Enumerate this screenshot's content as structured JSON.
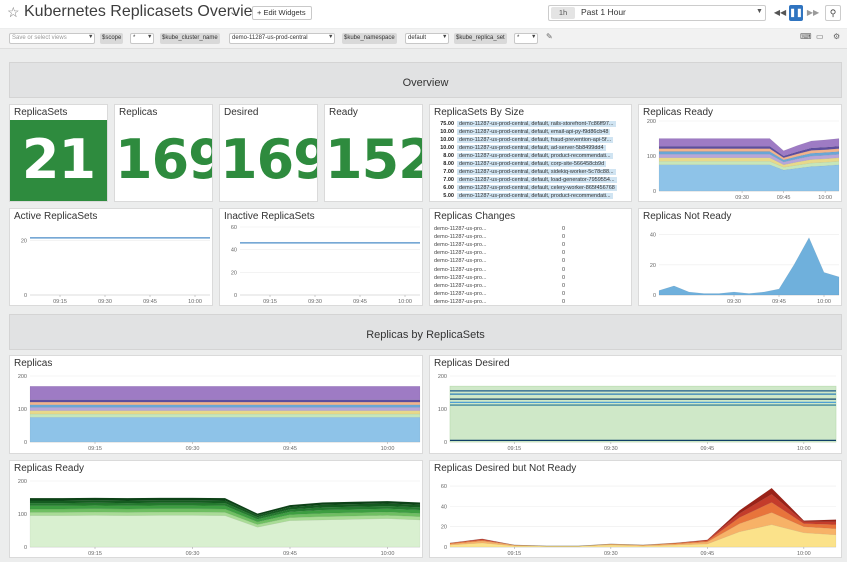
{
  "header": {
    "title": "Kubernetes Replicasets Overview",
    "edit_widgets": "+ Edit Widgets",
    "time_abbr": "1h",
    "time_label": "Past 1 Hour"
  },
  "filters": {
    "saved_views_placeholder": "Save or select views",
    "scope_key": "$scope",
    "scope_value": "*",
    "cluster_key": "$kube_cluster_name",
    "cluster_value": "demo-11287-us-prod-central",
    "namespace_key": "$kube_namespace",
    "namespace_value": "default",
    "replica_set_key": "$kube_replica_set",
    "replica_set_value": "*"
  },
  "sections": {
    "overview": "Overview",
    "replicas_by": "Replicas by ReplicaSets"
  },
  "widgets": {
    "replicasets": {
      "title": "ReplicaSets",
      "value": "21"
    },
    "replicas": {
      "title": "Replicas",
      "value": "169"
    },
    "desired": {
      "title": "Desired",
      "value": "169"
    },
    "ready": {
      "title": "Ready",
      "value": "152"
    },
    "by_size": {
      "title": "ReplicaSets By Size",
      "rows": [
        {
          "value": "75.00",
          "label": "demo-11287-us-prod-central, default, rails-storefront-7c86ff97..."
        },
        {
          "value": "10.00",
          "label": "demo-11287-us-prod-central, default, email-api-py-f9d86cb48"
        },
        {
          "value": "10.00",
          "label": "demo-11287-us-prod-central, default, fraud-prevention-api-5f..."
        },
        {
          "value": "10.00",
          "label": "demo-11287-us-prod-central, default, ad-server-5b8499dd4"
        },
        {
          "value": "8.00",
          "label": "demo-11287-us-prod-central, default, product-recommendati..."
        },
        {
          "value": "8.00",
          "label": "demo-11287-us-prod-central, default, corp-site-566458cb9d"
        },
        {
          "value": "7.00",
          "label": "demo-11287-us-prod-central, default, sidekiq-worker-5c78c88..."
        },
        {
          "value": "7.00",
          "label": "demo-11287-us-prod-central, default, load-generator-7959554..."
        },
        {
          "value": "6.00",
          "label": "demo-11287-us-prod-central, default, celery-worker-865f456768"
        },
        {
          "value": "5.00",
          "label": "demo-11287-us-prod-central, default, product-recommendati..."
        }
      ]
    },
    "replicas_changes": {
      "title": "Replicas Changes",
      "rows": [
        {
          "label": "demo-11287-us-pro...",
          "value": "0"
        },
        {
          "label": "demo-11287-us-pro...",
          "value": "0"
        },
        {
          "label": "demo-11287-us-pro...",
          "value": "0"
        },
        {
          "label": "demo-11287-us-pro...",
          "value": "0"
        },
        {
          "label": "demo-11287-us-pro...",
          "value": "0"
        },
        {
          "label": "demo-11287-us-pro...",
          "value": "0"
        },
        {
          "label": "demo-11287-us-pro...",
          "value": "0"
        },
        {
          "label": "demo-11287-us-pro...",
          "value": "0"
        },
        {
          "label": "demo-11287-us-pro...",
          "value": "0"
        },
        {
          "label": "demo-11287-us-pro...",
          "value": "0"
        }
      ]
    }
  },
  "chart_data": [
    {
      "id": "replicas_ready_small",
      "title": "Replicas Ready",
      "type": "area",
      "x": [
        "09:00",
        "09:05",
        "09:10",
        "09:15",
        "09:20",
        "09:25",
        "09:30",
        "09:35",
        "09:40",
        "09:45",
        "09:50",
        "09:55",
        "10:00",
        "10:05"
      ],
      "xticks": [
        "09:30",
        "09:45",
        "10:00"
      ],
      "yticks": [
        0,
        100,
        200
      ],
      "ylim": [
        0,
        200
      ],
      "colors": [
        "#8ec3e8",
        "#c7e6b9",
        "#e8d98a",
        "#b7a6d9",
        "#6aa6d6",
        "#f2b38c",
        "#5e4d9e",
        "#9e7bc4"
      ],
      "series": [
        {
          "values": [
            75,
            75,
            75,
            75,
            75,
            75,
            75,
            75,
            75,
            60,
            65,
            70,
            72,
            75
          ]
        },
        {
          "values": [
            10,
            10,
            10,
            10,
            10,
            10,
            10,
            10,
            10,
            8,
            9,
            10,
            10,
            10
          ]
        },
        {
          "values": [
            10,
            10,
            10,
            10,
            10,
            10,
            10,
            10,
            10,
            7,
            9,
            10,
            10,
            10
          ]
        },
        {
          "values": [
            10,
            10,
            10,
            10,
            10,
            10,
            10,
            10,
            10,
            8,
            9,
            10,
            10,
            10
          ]
        },
        {
          "values": [
            8,
            8,
            8,
            8,
            8,
            8,
            8,
            8,
            8,
            6,
            7,
            8,
            8,
            8
          ]
        },
        {
          "values": [
            8,
            8,
            8,
            8,
            8,
            8,
            8,
            8,
            8,
            6,
            7,
            8,
            8,
            8
          ]
        },
        {
          "values": [
            7,
            7,
            7,
            7,
            7,
            7,
            7,
            7,
            7,
            5,
            6,
            7,
            7,
            7
          ]
        },
        {
          "values": [
            22,
            22,
            22,
            22,
            22,
            22,
            22,
            22,
            22,
            15,
            18,
            20,
            21,
            22
          ]
        }
      ]
    },
    {
      "id": "active_replicasets",
      "title": "Active ReplicaSets",
      "type": "line",
      "x": [
        "09:05",
        "09:10",
        "09:15",
        "09:20",
        "09:25",
        "09:30",
        "09:35",
        "09:40",
        "09:45",
        "09:50",
        "09:55",
        "10:00",
        "10:05"
      ],
      "xticks": [
        "09:15",
        "09:30",
        "09:45",
        "10:00"
      ],
      "yticks": [
        0,
        20
      ],
      "ylim": [
        0,
        25
      ],
      "colors": [
        "#4a8cc7"
      ],
      "series": [
        {
          "values": [
            21,
            21,
            21,
            21,
            21,
            21,
            21,
            21,
            21,
            21,
            21,
            21,
            21
          ]
        }
      ]
    },
    {
      "id": "inactive_replicasets",
      "title": "Inactive ReplicaSets",
      "type": "line",
      "x": [
        "09:05",
        "09:10",
        "09:15",
        "09:20",
        "09:25",
        "09:30",
        "09:35",
        "09:40",
        "09:45",
        "09:50",
        "09:55",
        "10:00",
        "10:05"
      ],
      "xticks": [
        "09:15",
        "09:30",
        "09:45",
        "10:00"
      ],
      "yticks": [
        0,
        20,
        40,
        60
      ],
      "ylim": [
        0,
        60
      ],
      "colors": [
        "#4a8cc7"
      ],
      "series": [
        {
          "values": [
            46,
            46,
            46,
            46,
            46,
            46,
            46,
            46,
            46,
            46,
            46,
            46,
            46
          ]
        }
      ]
    },
    {
      "id": "replicas_not_ready",
      "title": "Replicas Not Ready",
      "type": "area",
      "x": [
        "09:05",
        "09:10",
        "09:15",
        "09:20",
        "09:25",
        "09:30",
        "09:35",
        "09:40",
        "09:45",
        "09:50",
        "09:55",
        "10:00",
        "10:05"
      ],
      "xticks": [
        "09:30",
        "09:45",
        "10:00"
      ],
      "yticks": [
        0,
        20,
        40
      ],
      "ylim": [
        0,
        45
      ],
      "colors": [
        "#6fb0dc"
      ],
      "series": [
        {
          "values": [
            3,
            6,
            2,
            1,
            1,
            2,
            1,
            2,
            4,
            20,
            38,
            15,
            12
          ]
        }
      ]
    },
    {
      "id": "replicas",
      "title": "Replicas",
      "type": "area",
      "x": [
        "09:05",
        "09:10",
        "09:15",
        "09:20",
        "09:25",
        "09:30",
        "09:35",
        "09:40",
        "09:45",
        "09:50",
        "09:55",
        "10:00",
        "10:05"
      ],
      "xticks": [
        "09:15",
        "09:30",
        "09:45",
        "10:00"
      ],
      "yticks": [
        0,
        100,
        200
      ],
      "ylim": [
        0,
        200
      ],
      "colors": [
        "#8ec3e8",
        "#c7e6b9",
        "#e8d98a",
        "#b7a6d9",
        "#6aa6d6",
        "#f2b38c",
        "#5e4d9e",
        "#9e7bc4"
      ],
      "series": [
        {
          "values": [
            75,
            75,
            75,
            75,
            75,
            75,
            75,
            75,
            75,
            75,
            75,
            75,
            75
          ]
        },
        {
          "values": [
            10,
            10,
            10,
            10,
            10,
            10,
            10,
            10,
            10,
            10,
            10,
            10,
            10
          ]
        },
        {
          "values": [
            10,
            10,
            10,
            10,
            10,
            10,
            10,
            10,
            10,
            10,
            10,
            10,
            10
          ]
        },
        {
          "values": [
            10,
            10,
            10,
            10,
            10,
            10,
            10,
            10,
            10,
            10,
            10,
            10,
            10
          ]
        },
        {
          "values": [
            8,
            8,
            8,
            8,
            8,
            8,
            8,
            8,
            8,
            8,
            8,
            8,
            8
          ]
        },
        {
          "values": [
            8,
            8,
            8,
            8,
            8,
            8,
            8,
            8,
            8,
            8,
            8,
            8,
            8
          ]
        },
        {
          "values": [
            7,
            7,
            7,
            7,
            7,
            7,
            7,
            7,
            7,
            7,
            7,
            7,
            7
          ]
        },
        {
          "values": [
            41,
            41,
            41,
            41,
            41,
            41,
            41,
            41,
            41,
            41,
            41,
            41,
            41
          ]
        }
      ]
    },
    {
      "id": "replicas_desired",
      "title": "Replicas Desired",
      "type": "line",
      "x": [
        "09:05",
        "09:10",
        "09:15",
        "09:20",
        "09:25",
        "09:30",
        "09:35",
        "09:40",
        "09:45",
        "09:50",
        "09:55",
        "10:00",
        "10:05"
      ],
      "xticks": [
        "09:15",
        "09:30",
        "09:45",
        "10:00"
      ],
      "yticks": [
        0,
        100,
        200
      ],
      "ylim": [
        0,
        200
      ],
      "colors": [
        "#cfe8c8",
        "#1f5a8c",
        "#2f7fb8",
        "#154a73",
        "#4fa0d4",
        "#237394",
        "#0f3f66"
      ],
      "series": [
        {
          "values": [
            169,
            169,
            169,
            169,
            169,
            169,
            169,
            169,
            169,
            169,
            169,
            169,
            169
          ]
        },
        {
          "values": [
            155,
            155,
            155,
            155,
            155,
            155,
            155,
            155,
            155,
            155,
            155,
            155,
            155
          ]
        },
        {
          "values": [
            145,
            145,
            145,
            145,
            145,
            145,
            145,
            145,
            145,
            145,
            145,
            145,
            145
          ]
        },
        {
          "values": [
            130,
            130,
            130,
            130,
            130,
            130,
            130,
            130,
            130,
            130,
            130,
            130,
            130
          ]
        },
        {
          "values": [
            120,
            120,
            120,
            120,
            120,
            120,
            120,
            120,
            120,
            120,
            120,
            120,
            120
          ]
        },
        {
          "values": [
            112,
            112,
            112,
            112,
            112,
            112,
            112,
            112,
            112,
            112,
            112,
            112,
            112
          ]
        },
        {
          "values": [
            5,
            5,
            5,
            5,
            5,
            5,
            5,
            5,
            5,
            5,
            5,
            5,
            5
          ]
        }
      ]
    },
    {
      "id": "replicas_ready",
      "title": "Replicas Ready",
      "type": "area",
      "x": [
        "09:05",
        "09:10",
        "09:15",
        "09:20",
        "09:25",
        "09:30",
        "09:35",
        "09:40",
        "09:45",
        "09:50",
        "09:55",
        "10:00",
        "10:05"
      ],
      "xticks": [
        "09:15",
        "09:30",
        "09:45",
        "10:00"
      ],
      "yticks": [
        0,
        100,
        200
      ],
      "ylim": [
        0,
        200
      ],
      "colors": [
        "#d9f0d0",
        "#a9dc96",
        "#6fbf62",
        "#3d9e41",
        "#247a2e",
        "#155c20",
        "#0c4216"
      ],
      "series": [
        {
          "values": [
            95,
            95,
            96,
            95,
            96,
            96,
            95,
            60,
            80,
            82,
            84,
            86,
            82
          ]
        },
        {
          "values": [
            10,
            10,
            10,
            10,
            10,
            10,
            10,
            8,
            9,
            10,
            10,
            10,
            10
          ]
        },
        {
          "values": [
            10,
            10,
            10,
            10,
            10,
            10,
            10,
            8,
            9,
            10,
            10,
            10,
            10
          ]
        },
        {
          "values": [
            10,
            10,
            10,
            10,
            10,
            10,
            10,
            8,
            9,
            10,
            10,
            10,
            10
          ]
        },
        {
          "values": [
            8,
            8,
            8,
            8,
            8,
            8,
            8,
            6,
            7,
            8,
            8,
            8,
            8
          ]
        },
        {
          "values": [
            8,
            8,
            8,
            8,
            8,
            8,
            8,
            6,
            7,
            8,
            8,
            8,
            8
          ]
        },
        {
          "values": [
            7,
            7,
            7,
            7,
            7,
            7,
            7,
            5,
            6,
            7,
            7,
            7,
            7
          ]
        }
      ]
    },
    {
      "id": "replicas_desired_not_ready",
      "title": "Replicas Desired but Not Ready",
      "type": "area",
      "x": [
        "09:05",
        "09:10",
        "09:15",
        "09:20",
        "09:25",
        "09:30",
        "09:35",
        "09:40",
        "09:45",
        "09:50",
        "09:55",
        "10:00",
        "10:05"
      ],
      "xticks": [
        "09:15",
        "09:30",
        "09:45",
        "10:00"
      ],
      "yticks": [
        0,
        20,
        40,
        60
      ],
      "ylim": [
        0,
        65
      ],
      "colors": [
        "#fbe28a",
        "#f7b267",
        "#e8743b",
        "#c43c2b",
        "#9a2218"
      ],
      "series": [
        {
          "values": [
            2,
            4,
            1,
            1,
            1,
            2,
            1,
            2,
            3,
            15,
            22,
            14,
            12
          ]
        },
        {
          "values": [
            1,
            2,
            1,
            0,
            0,
            1,
            1,
            1,
            2,
            8,
            12,
            6,
            6
          ]
        },
        {
          "values": [
            1,
            1,
            0,
            0,
            0,
            0,
            0,
            1,
            1,
            6,
            10,
            3,
            4
          ]
        },
        {
          "values": [
            0,
            1,
            0,
            0,
            0,
            0,
            0,
            0,
            1,
            4,
            8,
            2,
            3
          ]
        },
        {
          "values": [
            0,
            0,
            0,
            0,
            0,
            0,
            0,
            0,
            0,
            3,
            6,
            1,
            2
          ]
        }
      ]
    }
  ]
}
